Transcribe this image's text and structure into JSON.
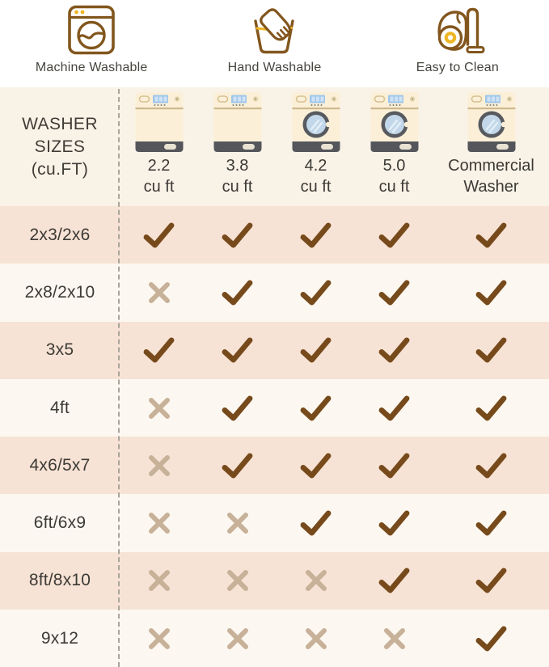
{
  "legend": {
    "items": [
      {
        "icon": "washing-machine-icon",
        "label": "Machine Washable"
      },
      {
        "icon": "hand-wash-icon",
        "label": "Hand Washable"
      },
      {
        "icon": "vacuum-icon",
        "label": "Easy to Clean"
      }
    ]
  },
  "chart_data": {
    "type": "table",
    "corner": {
      "lines": [
        "WASHER",
        "SIZES",
        "(cu.FT)"
      ]
    },
    "columns": [
      {
        "id": "2.2-cu-ft",
        "lines": [
          "2.2",
          "cu ft"
        ],
        "washer_type": "top-load"
      },
      {
        "id": "3.8-cu-ft",
        "lines": [
          "3.8",
          "cu ft"
        ],
        "washer_type": "top-load"
      },
      {
        "id": "4.2-cu-ft",
        "lines": [
          "4.2",
          "cu ft"
        ],
        "washer_type": "front-load"
      },
      {
        "id": "5.0-cu-ft",
        "lines": [
          "5.0",
          "cu ft"
        ],
        "washer_type": "front-load"
      },
      {
        "id": "commercial-washer",
        "lines": [
          "Commercial",
          "Washer"
        ],
        "washer_type": "front-load"
      }
    ],
    "rows": [
      {
        "label": "2x3/2x6",
        "marks": [
          "check",
          "check",
          "check",
          "check",
          "check"
        ]
      },
      {
        "label": "2x8/2x10",
        "marks": [
          "x",
          "check",
          "check",
          "check",
          "check"
        ]
      },
      {
        "label": "3x5",
        "marks": [
          "check",
          "check",
          "check",
          "check",
          "check"
        ]
      },
      {
        "label": "4ft",
        "marks": [
          "x",
          "check",
          "check",
          "check",
          "check"
        ]
      },
      {
        "label": "4x6/5x7",
        "marks": [
          "x",
          "check",
          "check",
          "check",
          "check"
        ]
      },
      {
        "label": "6ft/6x9",
        "marks": [
          "x",
          "x",
          "check",
          "check",
          "check"
        ]
      },
      {
        "label": "8ft/8x10",
        "marks": [
          "x",
          "x",
          "x",
          "check",
          "check"
        ]
      },
      {
        "label": "9x12",
        "marks": [
          "x",
          "x",
          "x",
          "x",
          "check"
        ]
      }
    ]
  },
  "colors": {
    "page_bg": "#ffffff",
    "header_bg": "#f9f2e7",
    "row_alt_bg": "#f7e3d5",
    "row_bg": "#fcf8f1",
    "check_color": "#774a1c",
    "cross_color": "#c8b199",
    "icon_outline": "#82561d",
    "icon_accent": "#eeb625",
    "text_color": "#3f3d38",
    "dash_color": "#a9a49b",
    "washer_body": "#fbf0d7",
    "washer_band": "#54565b",
    "washer_trim": "#cdb88e",
    "washer_display": "#9fc6ea",
    "washer_glass": "#c2d8ea"
  }
}
